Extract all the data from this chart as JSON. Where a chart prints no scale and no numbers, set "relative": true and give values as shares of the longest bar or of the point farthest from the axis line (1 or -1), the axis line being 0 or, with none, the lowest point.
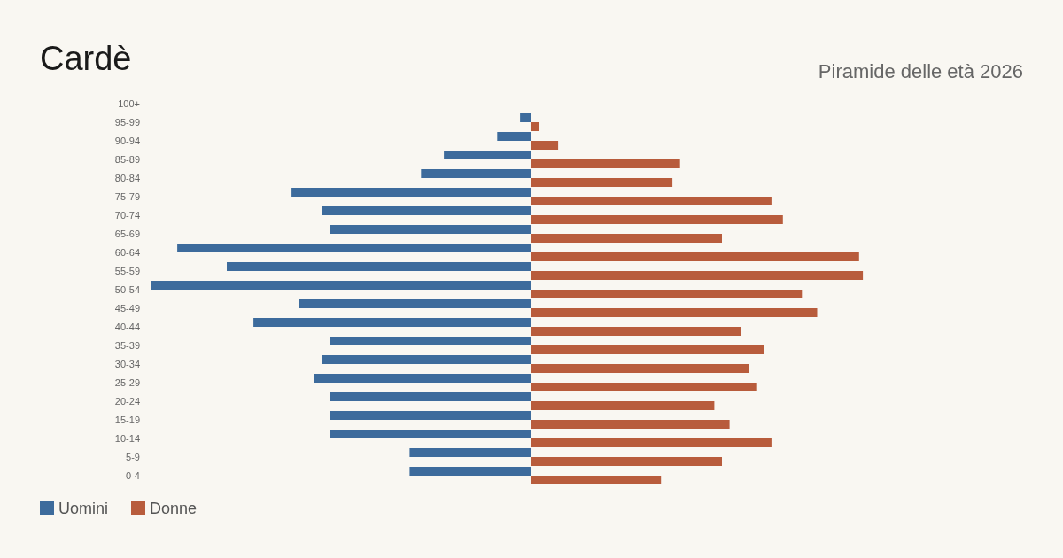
{
  "chart_data": {
    "type": "bar",
    "orientation": "horizontal",
    "relative": true,
    "title": "Cardè",
    "subtitle": "Piramide delle età 2026",
    "legend": "bottom left",
    "categories": [
      "100+",
      "95-99",
      "90-94",
      "85-89",
      "80-84",
      "75-79",
      "70-74",
      "65-69",
      "60-64",
      "55-59",
      "50-54",
      "45-49",
      "40-44",
      "35-39",
      "30-34",
      "25-29",
      "20-24",
      "15-19",
      "10-14",
      "5-9",
      "0-4"
    ],
    "series": [
      {
        "name": "Uomini",
        "color": "#3d6b9c",
        "values": [
          0,
          -0.03,
          -0.09,
          -0.23,
          -0.29,
          -0.63,
          -0.55,
          -0.53,
          -0.93,
          -0.8,
          -1,
          -0.61,
          -0.73,
          -0.53,
          -0.55,
          -0.57,
          -0.53,
          -0.53,
          -0.53,
          -0.32,
          -0.32
        ]
      },
      {
        "name": "Donne",
        "color": "#b85c3c",
        "values": [
          0,
          0.02,
          0.07,
          0.39,
          0.37,
          0.63,
          0.66,
          0.5,
          0.86,
          0.87,
          0.71,
          0.75,
          0.55,
          0.61,
          0.57,
          0.59,
          0.48,
          0.52,
          0.63,
          0.5,
          0.34
        ]
      }
    ]
  }
}
